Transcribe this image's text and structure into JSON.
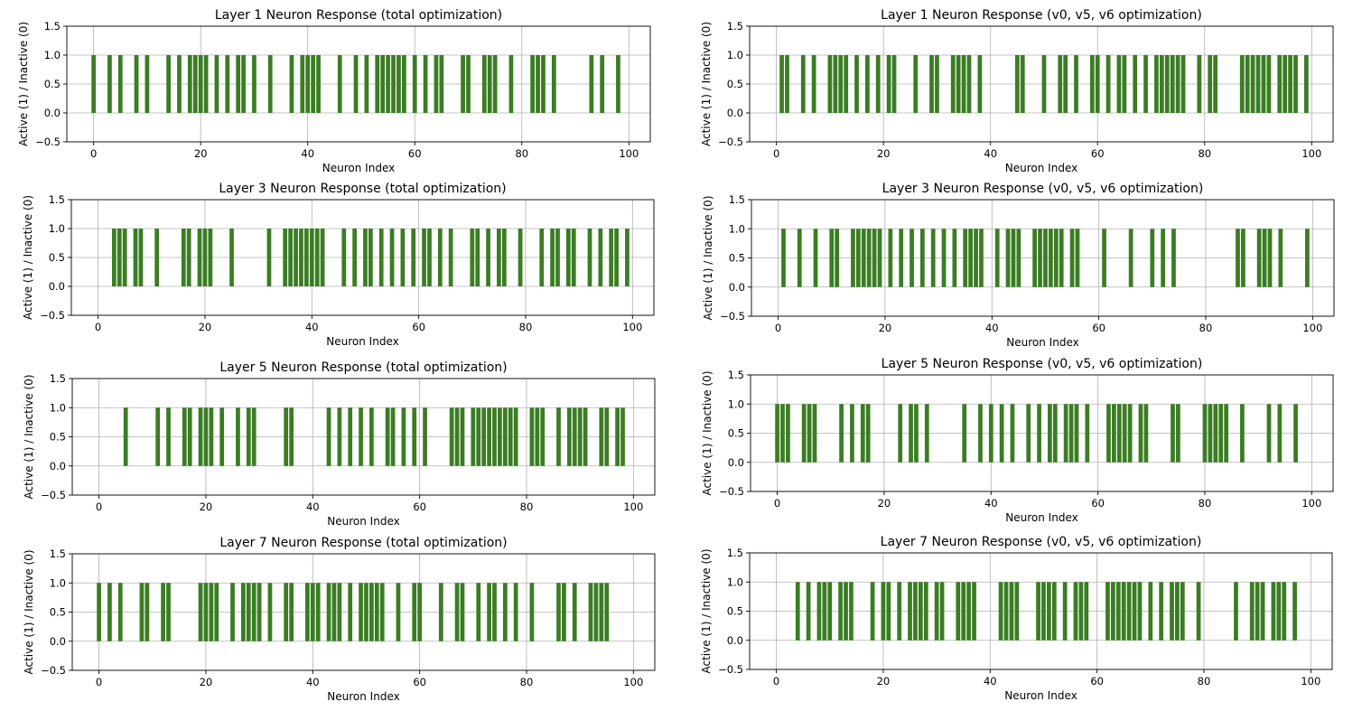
{
  "figure": {
    "bar_color": "#3a7d22",
    "grid_color": "#b0b0b0",
    "axis_color": "#000000"
  },
  "chart_data": [
    {
      "type": "bar",
      "title": "Layer 1 Neuron Response (total optimization)",
      "xlabel": "Neuron Index",
      "ylabel": "Active (1) / Inactive (0)",
      "xlim": [
        -5,
        104
      ],
      "ylim": [
        -0.5,
        1.5
      ],
      "xticks": [
        0,
        20,
        40,
        60,
        80,
        100
      ],
      "yticks": [
        -0.5,
        0.0,
        0.5,
        1.0,
        1.5
      ],
      "grid": true,
      "active_indices": [
        0,
        3,
        5,
        8,
        10,
        14,
        16,
        18,
        19,
        20,
        21,
        23,
        25,
        27,
        28,
        30,
        33,
        37,
        39,
        40,
        41,
        42,
        46,
        49,
        51,
        53,
        54,
        55,
        56,
        57,
        58,
        60,
        62,
        64,
        65,
        69,
        70,
        73,
        74,
        75,
        78,
        82,
        83,
        84,
        86,
        93,
        95,
        98
      ]
    },
    {
      "type": "bar",
      "title": "Layer 1 Neuron Response (v0, v5, v6 optimization)",
      "xlabel": "Neuron Index",
      "ylabel": "Active (1) / Inactive (0)",
      "xlim": [
        -5,
        104
      ],
      "ylim": [
        -0.5,
        1.5
      ],
      "xticks": [
        0,
        20,
        40,
        60,
        80,
        100
      ],
      "yticks": [
        -0.5,
        0.0,
        0.5,
        1.0,
        1.5
      ],
      "grid": true,
      "active_indices": [
        1,
        2,
        5,
        7,
        10,
        11,
        12,
        13,
        15,
        17,
        19,
        21,
        22,
        26,
        29,
        30,
        33,
        34,
        35,
        36,
        38,
        45,
        46,
        50,
        53,
        54,
        56,
        59,
        60,
        62,
        64,
        65,
        67,
        69,
        71,
        72,
        73,
        74,
        75,
        76,
        79,
        81,
        82,
        87,
        88,
        89,
        90,
        91,
        92,
        94,
        95,
        96,
        97,
        99
      ]
    },
    {
      "type": "bar",
      "title": "Layer 3 Neuron Response (total optimization)",
      "xlabel": "Neuron Index",
      "ylabel": "Active (1) / Inactive (0)",
      "xlim": [
        -5,
        104
      ],
      "ylim": [
        -0.5,
        1.5
      ],
      "xticks": [
        0,
        20,
        40,
        60,
        80,
        100
      ],
      "yticks": [
        -0.5,
        0.0,
        0.5,
        1.0,
        1.5
      ],
      "grid": true,
      "active_indices": [
        3,
        4,
        5,
        7,
        8,
        11,
        16,
        17,
        19,
        20,
        21,
        25,
        32,
        35,
        36,
        37,
        38,
        39,
        40,
        41,
        42,
        46,
        48,
        50,
        51,
        53,
        55,
        57,
        59,
        61,
        62,
        64,
        66,
        70,
        71,
        73,
        75,
        76,
        79,
        83,
        85,
        86,
        88,
        89,
        92,
        94,
        96,
        97,
        99
      ]
    },
    {
      "type": "bar",
      "title": "Layer 3 Neuron Response (v0, v5, v6 optimization)",
      "xlabel": "Neuron Index",
      "ylabel": "Active (1) / Inactive (0)",
      "xlim": [
        -5,
        104
      ],
      "ylim": [
        -0.5,
        1.5
      ],
      "xticks": [
        0,
        20,
        40,
        60,
        80,
        100
      ],
      "yticks": [
        -0.5,
        0.0,
        0.5,
        1.0,
        1.5
      ],
      "grid": true,
      "active_indices": [
        1,
        4,
        7,
        10,
        11,
        14,
        15,
        16,
        17,
        18,
        19,
        21,
        23,
        25,
        27,
        29,
        31,
        33,
        35,
        36,
        37,
        38,
        41,
        43,
        44,
        45,
        48,
        49,
        50,
        51,
        52,
        53,
        55,
        56,
        61,
        66,
        70,
        72,
        74,
        86,
        87,
        90,
        91,
        92,
        94,
        99
      ]
    },
    {
      "type": "bar",
      "title": "Layer 5 Neuron Response (total optimization)",
      "xlabel": "Neuron Index",
      "ylabel": "Active (1) / Inactive (0)",
      "xlim": [
        -5,
        104
      ],
      "ylim": [
        -0.5,
        1.5
      ],
      "xticks": [
        0,
        20,
        40,
        60,
        80,
        100
      ],
      "yticks": [
        -0.5,
        0.0,
        0.5,
        1.0,
        1.5
      ],
      "grid": true,
      "active_indices": [
        5,
        11,
        13,
        16,
        17,
        19,
        20,
        21,
        23,
        26,
        28,
        29,
        35,
        36,
        43,
        45,
        47,
        49,
        51,
        54,
        55,
        57,
        59,
        61,
        66,
        67,
        68,
        70,
        71,
        72,
        73,
        74,
        75,
        76,
        77,
        78,
        81,
        82,
        83,
        86,
        88,
        89,
        90,
        91,
        94,
        95,
        97,
        98
      ]
    },
    {
      "type": "bar",
      "title": "Layer 5 Neuron Response (v0, v5, v6 optimization)",
      "xlabel": "Neuron Index",
      "ylabel": "Active (1) / Inactive (0)",
      "xlim": [
        -5,
        104
      ],
      "ylim": [
        -0.5,
        1.5
      ],
      "xticks": [
        0,
        20,
        40,
        60,
        80,
        100
      ],
      "yticks": [
        -0.5,
        0.0,
        0.5,
        1.0,
        1.5
      ],
      "grid": true,
      "active_indices": [
        0,
        1,
        2,
        5,
        6,
        7,
        12,
        14,
        16,
        17,
        23,
        25,
        26,
        28,
        35,
        38,
        40,
        42,
        44,
        47,
        49,
        51,
        52,
        54,
        55,
        56,
        58,
        62,
        63,
        64,
        65,
        66,
        68,
        69,
        74,
        75,
        80,
        81,
        82,
        83,
        84,
        87,
        92,
        94,
        97
      ]
    },
    {
      "type": "bar",
      "title": "Layer 7 Neuron Response (total optimization)",
      "xlabel": "Neuron Index",
      "ylabel": "Active (1) / Inactive (0)",
      "xlim": [
        -5,
        104
      ],
      "ylim": [
        -0.5,
        1.5
      ],
      "xticks": [
        0,
        20,
        40,
        60,
        80,
        100
      ],
      "yticks": [
        -0.5,
        0.0,
        0.5,
        1.0,
        1.5
      ],
      "grid": true,
      "active_indices": [
        0,
        2,
        4,
        8,
        9,
        12,
        13,
        19,
        20,
        21,
        22,
        25,
        27,
        28,
        29,
        30,
        32,
        35,
        36,
        39,
        40,
        41,
        43,
        44,
        45,
        47,
        49,
        50,
        51,
        52,
        53,
        56,
        59,
        60,
        64,
        67,
        68,
        71,
        73,
        74,
        76,
        78,
        81,
        86,
        87,
        89,
        92,
        93,
        94,
        95
      ]
    },
    {
      "type": "bar",
      "title": "Layer 7 Neuron Response (v0, v5, v6 optimization)",
      "xlabel": "Neuron Index",
      "ylabel": "Active (1) / Inactive (0)",
      "xlim": [
        -5,
        104
      ],
      "ylim": [
        -0.5,
        1.5
      ],
      "xticks": [
        0,
        20,
        40,
        60,
        80,
        100
      ],
      "yticks": [
        -0.5,
        0.0,
        0.5,
        1.0,
        1.5
      ],
      "grid": true,
      "active_indices": [
        4,
        6,
        8,
        9,
        10,
        12,
        13,
        14,
        18,
        20,
        21,
        23,
        25,
        26,
        27,
        28,
        30,
        31,
        34,
        35,
        36,
        37,
        42,
        43,
        44,
        45,
        49,
        50,
        51,
        52,
        54,
        56,
        57,
        58,
        62,
        63,
        64,
        65,
        66,
        67,
        68,
        70,
        72,
        74,
        75,
        76,
        79,
        86,
        89,
        90,
        91,
        93,
        94,
        95,
        97
      ]
    }
  ]
}
